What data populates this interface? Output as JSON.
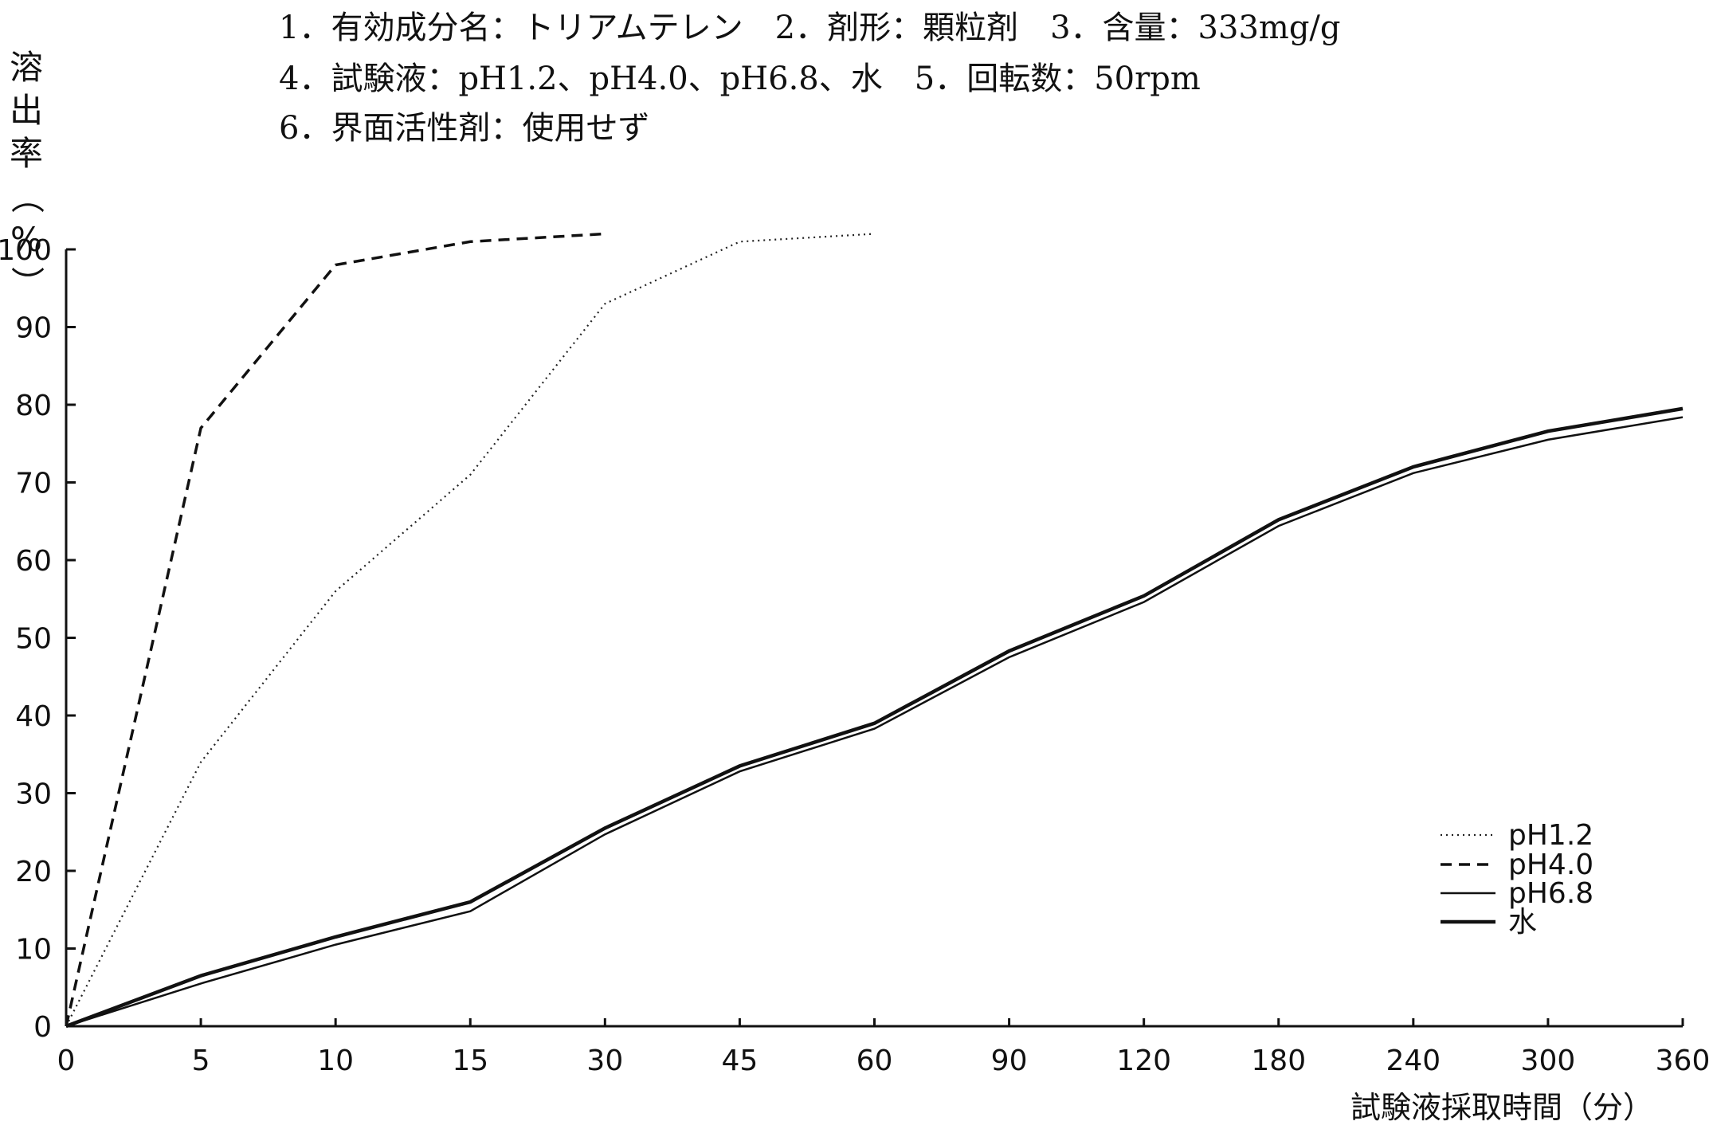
{
  "header": {
    "line1": "1．有効成分名：トリアムテレン　2．剤形：顆粒剤　3．含量：333mg/g",
    "line2": "4．試験液：pH1.2、pH4.0、pH6.8、水　5．回転数：50rpm",
    "line3": "6．界面活性剤：使用せず"
  },
  "chart_data": {
    "type": "line",
    "ylabel_chars": [
      "溶",
      "出",
      "率",
      "（",
      "%",
      "）"
    ],
    "ylabel": "溶出率（%）",
    "xlabel": "試験液採取時間（分）",
    "categories": [
      "0",
      "5",
      "10",
      "15",
      "30",
      "45",
      "60",
      "90",
      "120",
      "180",
      "240",
      "300",
      "360"
    ],
    "ylim": [
      0,
      100
    ],
    "yticks": [
      "0",
      "10",
      "20",
      "30",
      "40",
      "50",
      "60",
      "70",
      "80",
      "90",
      "100"
    ],
    "grid": false,
    "legend_position": "bottom-right",
    "series": [
      {
        "name": "pH1.2",
        "style": "dotted",
        "x": [
          "0",
          "5",
          "10",
          "15",
          "30",
          "45",
          "60"
        ],
        "values": [
          0,
          34,
          56,
          71,
          93,
          101,
          102
        ]
      },
      {
        "name": "pH4.0",
        "style": "dashed",
        "x": [
          "0",
          "5",
          "10",
          "15",
          "30"
        ],
        "values": [
          0,
          77,
          98,
          101,
          102
        ]
      },
      {
        "name": "pH6.8",
        "style": "thin",
        "x": [
          "0",
          "5",
          "10",
          "15",
          "30",
          "45",
          "60",
          "90",
          "120",
          "180",
          "240",
          "300",
          "360"
        ],
        "values": [
          0,
          5.5,
          10.5,
          14.8,
          24.7,
          32.8,
          38.3,
          47.5,
          54.6,
          64.4,
          71.2,
          75.5,
          78.4
        ]
      },
      {
        "name": "水",
        "style": "thick",
        "x": [
          "0",
          "5",
          "10",
          "15",
          "30",
          "45",
          "60",
          "90",
          "120",
          "180",
          "240",
          "300",
          "360"
        ],
        "values": [
          0,
          6.5,
          11.5,
          16,
          25.5,
          33.5,
          39,
          48.3,
          55.4,
          65.2,
          72,
          76.6,
          79.5
        ]
      }
    ]
  }
}
